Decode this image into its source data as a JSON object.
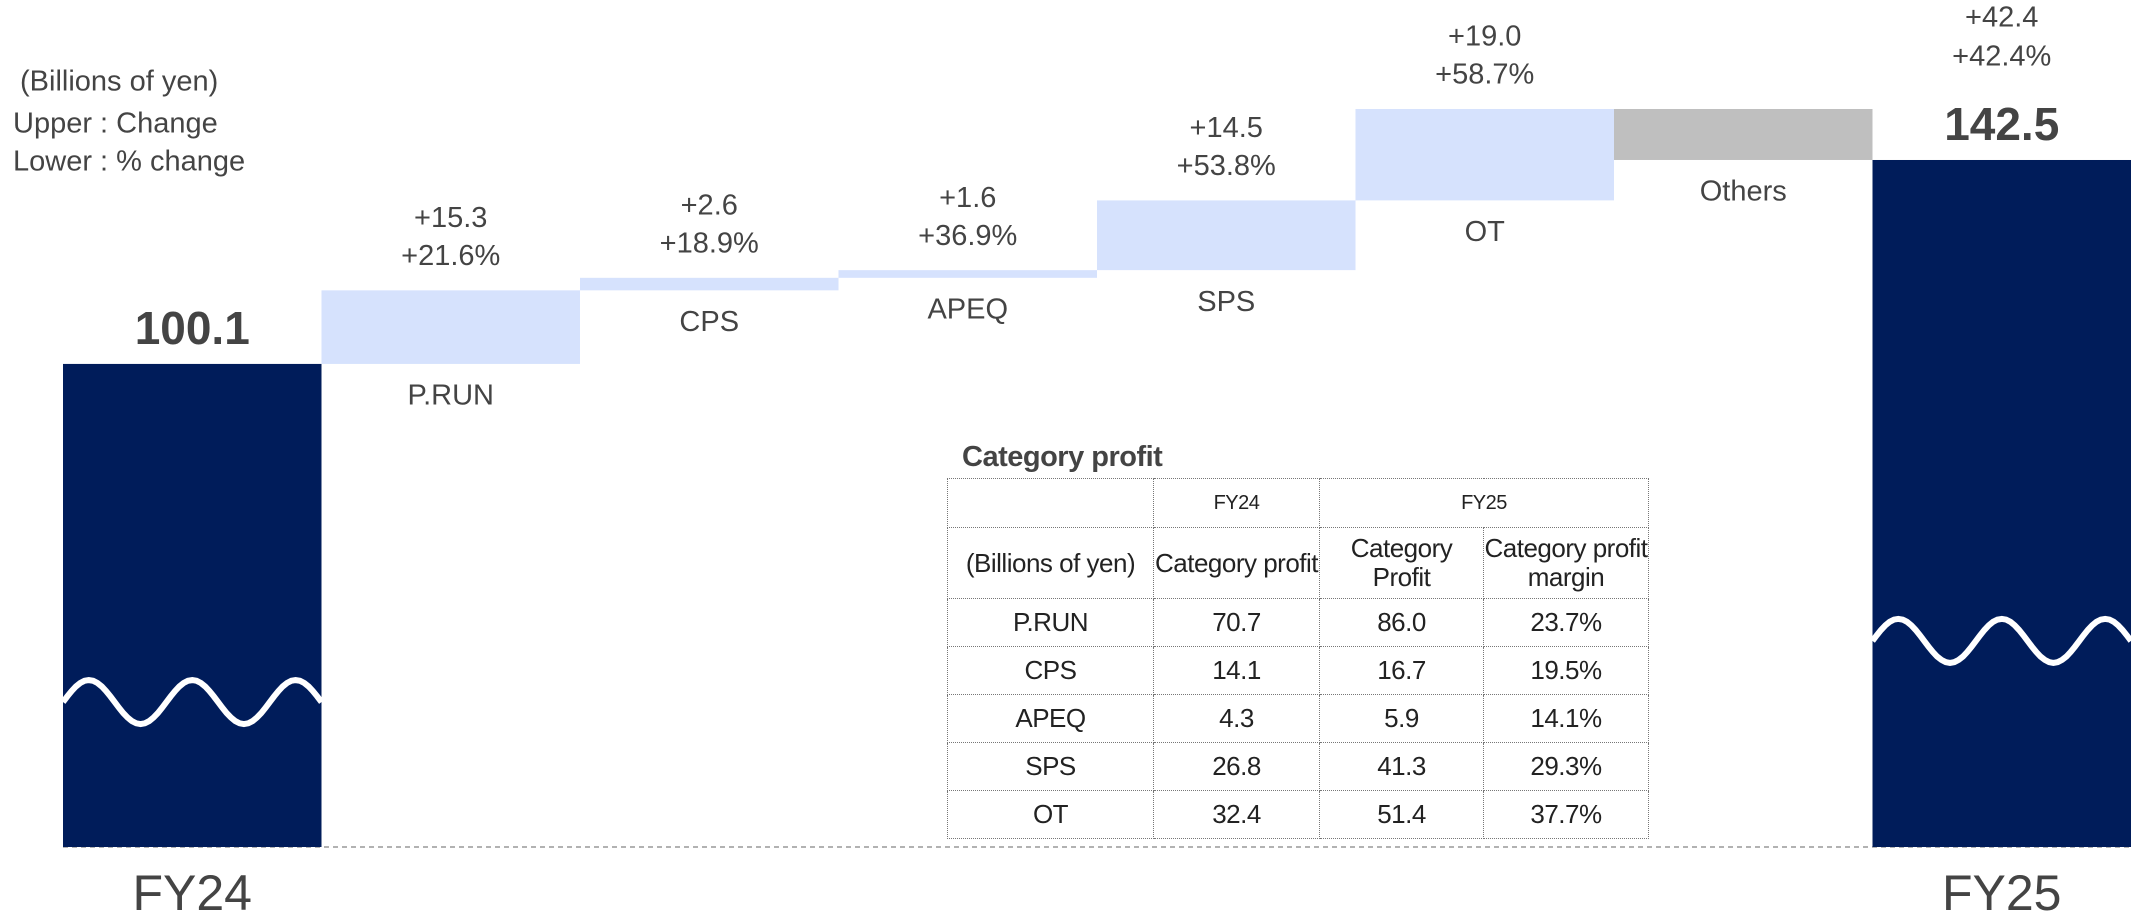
{
  "chart_data": {
    "type": "waterfall",
    "unit_note": "(Billions of yen)",
    "legend_upper": "Upper : Change",
    "legend_lower": "Lower : % change",
    "totals": [
      {
        "name": "FY24",
        "value": 100.1,
        "color": "#001c5a"
      },
      {
        "name": "FY25",
        "value": 142.5,
        "color": "#001c5a",
        "change_label": "+42.4",
        "pct_label": "+42.4%"
      }
    ],
    "categories": [
      "P.RUN",
      "CPS",
      "APEQ",
      "SPS",
      "OT",
      "Others"
    ],
    "values": [
      15.3,
      2.6,
      1.6,
      14.5,
      19.0,
      -10.6
    ],
    "value_labels": [
      "+15.3",
      "+2.6",
      "+1.6",
      "+14.5",
      "+19.0",
      null
    ],
    "pct_labels": [
      "+21.6%",
      "+18.9%",
      "+36.9%",
      "+53.8%",
      "+58.7%",
      null
    ],
    "increase_color": "#d6e2fd",
    "decrease_color": "#bfbfbf"
  },
  "table": {
    "title": "Category profit",
    "groups": [
      "FY24",
      "FY25"
    ],
    "columns": [
      "(Billions of yen)",
      "Category profit",
      "Category Profit",
      "Category profit margin"
    ],
    "rows": [
      [
        "P.RUN",
        "70.7",
        "86.0",
        "23.7%"
      ],
      [
        "CPS",
        "14.1",
        "16.7",
        "19.5%"
      ],
      [
        "APEQ",
        "4.3",
        "5.9",
        "14.1%"
      ],
      [
        "SPS",
        "26.8",
        "41.3",
        "29.3%"
      ],
      [
        "OT",
        "32.4",
        "51.4",
        "37.7%"
      ]
    ]
  }
}
